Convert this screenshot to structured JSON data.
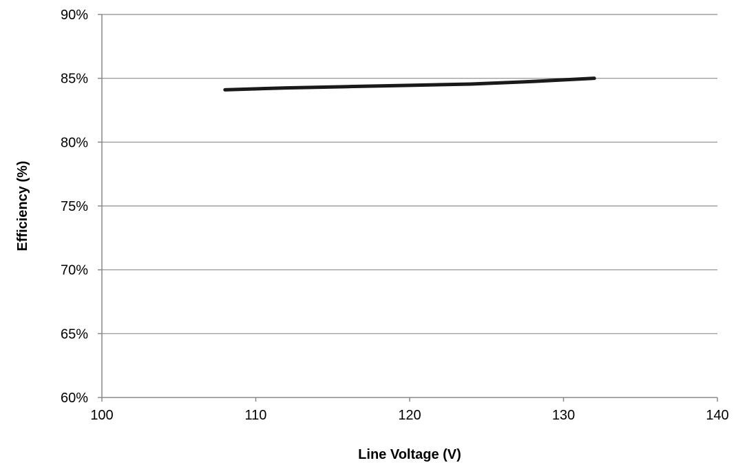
{
  "chart_data": {
    "type": "line",
    "title": "",
    "xlabel": "Line Voltage (V)",
    "ylabel": "Efficiency (%)",
    "xlim": [
      100,
      140
    ],
    "ylim": [
      60,
      90
    ],
    "x_ticks": [
      100,
      110,
      120,
      130,
      140
    ],
    "y_ticks": [
      60,
      65,
      70,
      75,
      80,
      85,
      90
    ],
    "x_tick_labels": [
      "100",
      "110",
      "120",
      "130",
      "140"
    ],
    "y_tick_labels": [
      "60%",
      "65%",
      "70%",
      "75%",
      "80%",
      "85%",
      "90%"
    ],
    "grid": "horizontal",
    "legend": "none",
    "series": [
      {
        "color": "#1a1a1a",
        "x": [
          108,
          112,
          116,
          120,
          124,
          128,
          132
        ],
        "y": [
          84.1,
          84.25,
          84.35,
          84.45,
          84.55,
          84.75,
          85.0
        ]
      }
    ]
  }
}
